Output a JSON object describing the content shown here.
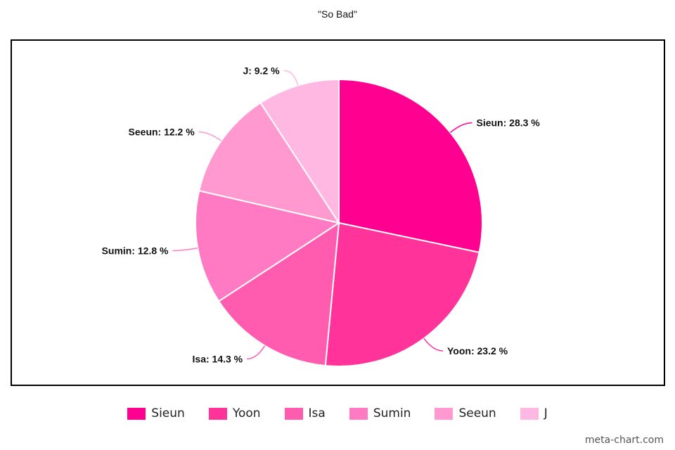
{
  "chart_data": {
    "type": "pie",
    "title": "\"So Bad\"",
    "label_suffix": " %",
    "slices": [
      {
        "name": "Sieun",
        "value": 28.3,
        "color": "#ff0090"
      },
      {
        "name": "Yoon",
        "value": 23.2,
        "color": "#ff3399"
      },
      {
        "name": "Isa",
        "value": 14.3,
        "color": "#ff5cb0"
      },
      {
        "name": "Sumin",
        "value": 12.8,
        "color": "#ff7ac3"
      },
      {
        "name": "Seeun",
        "value": 12.2,
        "color": "#ff99cf"
      },
      {
        "name": "J",
        "value": 9.2,
        "color": "#ffb8e2"
      }
    ],
    "start_angle_deg": 0,
    "direction": "clockwise",
    "legend_position": "bottom"
  },
  "watermark": "meta-chart.com"
}
